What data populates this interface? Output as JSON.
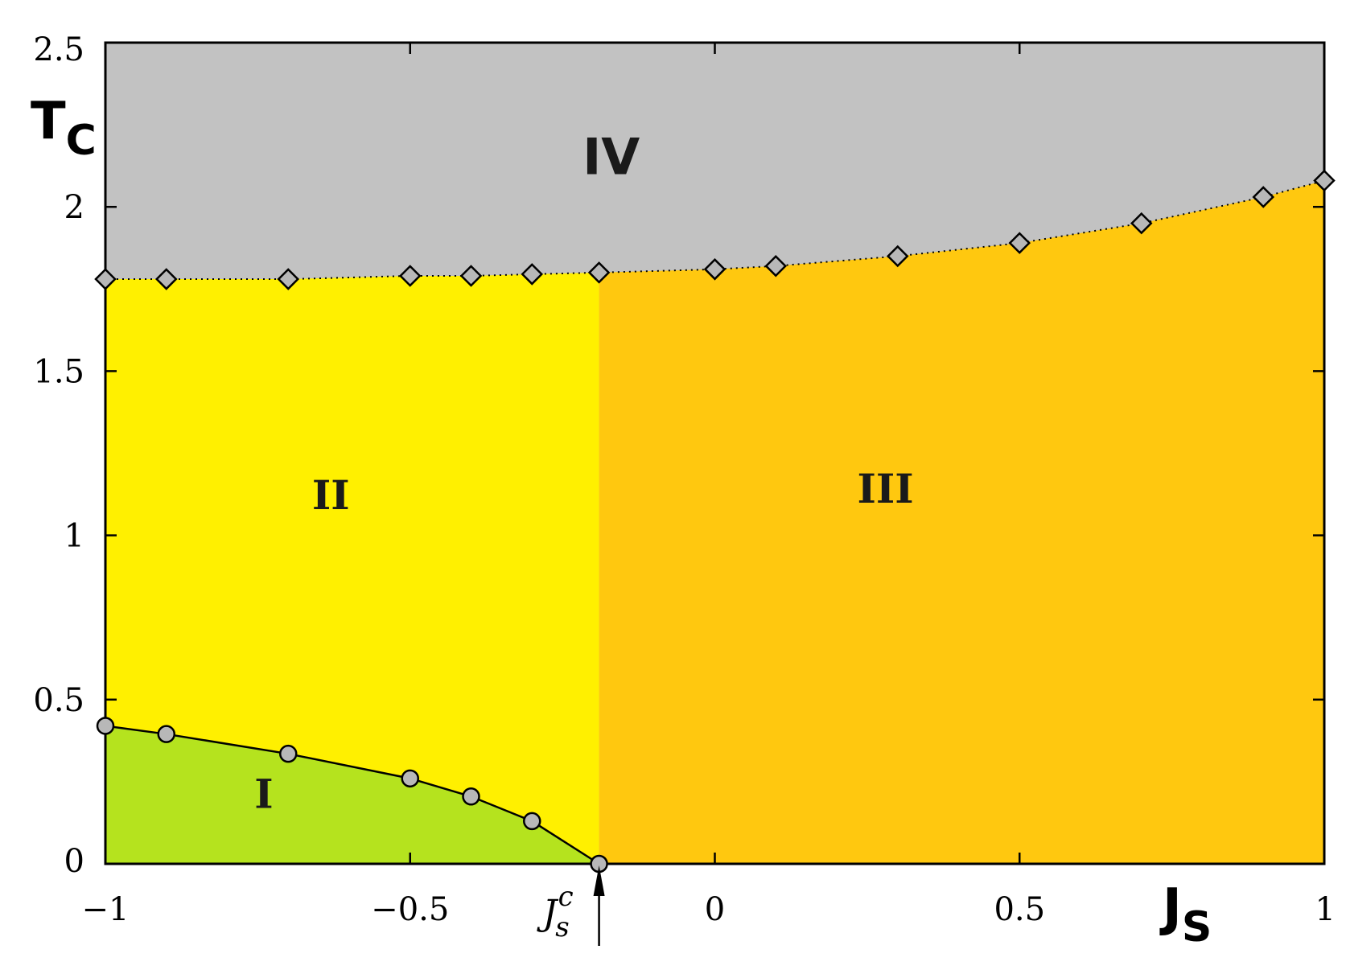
{
  "chart_data": {
    "type": "area",
    "xlabel": "J",
    "xlabel_sub": "S",
    "ylabel": "T",
    "ylabel_sub": "C",
    "xlim": [
      -1,
      1
    ],
    "ylim": [
      0,
      2.5
    ],
    "x_ticks": [
      -1,
      -0.5,
      0,
      0.5,
      1
    ],
    "x_tick_labels": [
      "−1",
      "−0.5",
      "0",
      "0.5",
      "1"
    ],
    "y_ticks": [
      0,
      0.5,
      1,
      1.5,
      2,
      2.5
    ],
    "y_tick_labels": [
      "0",
      "0.5",
      "1",
      "1.5",
      "2",
      "2.5"
    ],
    "grid": false,
    "critical_x": -0.19,
    "critical_label": {
      "main": "J",
      "sub": "s",
      "sup": "c"
    },
    "series": [
      {
        "marker": "circle",
        "line": "solid",
        "x": [
          -1,
          -0.9,
          -0.7,
          -0.5,
          -0.4,
          -0.3,
          -0.19
        ],
        "y": [
          0.42,
          0.395,
          0.335,
          0.26,
          0.205,
          0.13,
          0.0
        ]
      },
      {
        "marker": "diamond",
        "line": "dotted",
        "x": [
          -1,
          -0.9,
          -0.7,
          -0.5,
          -0.4,
          -0.3,
          -0.19,
          0,
          0.1,
          0.3,
          0.5,
          0.7,
          0.9,
          1.0
        ],
        "y": [
          1.78,
          1.78,
          1.78,
          1.79,
          1.79,
          1.795,
          1.8,
          1.81,
          1.82,
          1.85,
          1.89,
          1.95,
          2.03,
          2.08
        ]
      }
    ],
    "regions": [
      {
        "label": "I",
        "color": "#b5e31e",
        "label_pos": [
          -0.74,
          0.17
        ]
      },
      {
        "label": "II",
        "color": "#fff000",
        "label_pos": [
          -0.63,
          1.08
        ]
      },
      {
        "label": "III",
        "color": "#ffc80f",
        "label_pos": [
          0.28,
          1.1
        ]
      },
      {
        "label": "IV",
        "color": "#c2c2c2",
        "label_pos": [
          -0.17,
          2.1
        ]
      }
    ],
    "marker_fill": "#b8b8b8"
  }
}
